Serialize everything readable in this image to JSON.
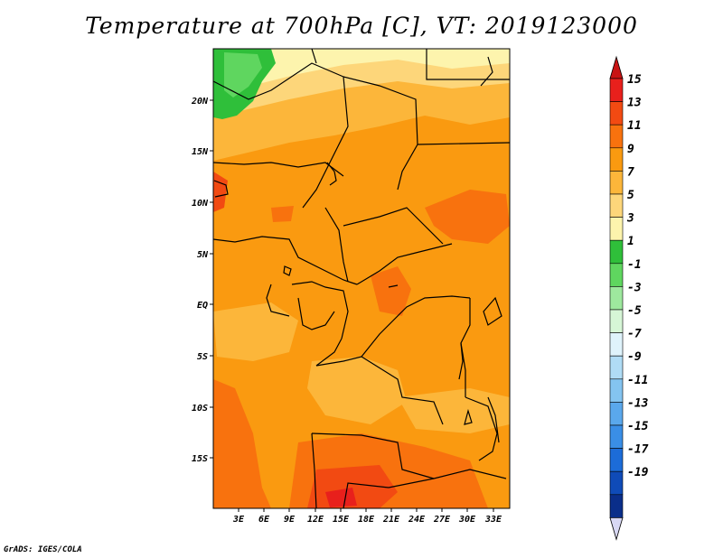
{
  "title": "Temperature at 700hPa [C], VT: 2019123000",
  "credit": "GrADS: IGES/COLA",
  "lat_ticks": [
    "20N",
    "15N",
    "10N",
    "5N",
    "EQ",
    "5S",
    "10S",
    "15S"
  ],
  "lon_ticks": [
    "3E",
    "6E",
    "9E",
    "12E",
    "15E",
    "18E",
    "21E",
    "24E",
    "27E",
    "30E",
    "33E"
  ],
  "colorbar": {
    "labels": [
      "15",
      "13",
      "11",
      "9",
      "7",
      "5",
      "3",
      "1",
      "-1",
      "-3",
      "-5",
      "-7",
      "-9",
      "-11",
      "-13",
      "-15",
      "-17",
      "-19"
    ],
    "colors": [
      "#e8201c",
      "#f24a12",
      "#f8720e",
      "#fa9a10",
      "#fcb63a",
      "#fdd67a",
      "#fdf4ad",
      "#2fbf3a",
      "#5fd65f",
      "#9ee89e",
      "#d6f6d6",
      "#dff3fb",
      "#b0dcf5",
      "#84c4f0",
      "#5aa8ec",
      "#3a8ee6",
      "#1c6cd8",
      "#0f4bb8",
      "#0a2e8a",
      "#0a1a60"
    ],
    "top_color": "#c81414",
    "bottom_color": "#d8d8f4"
  }
}
